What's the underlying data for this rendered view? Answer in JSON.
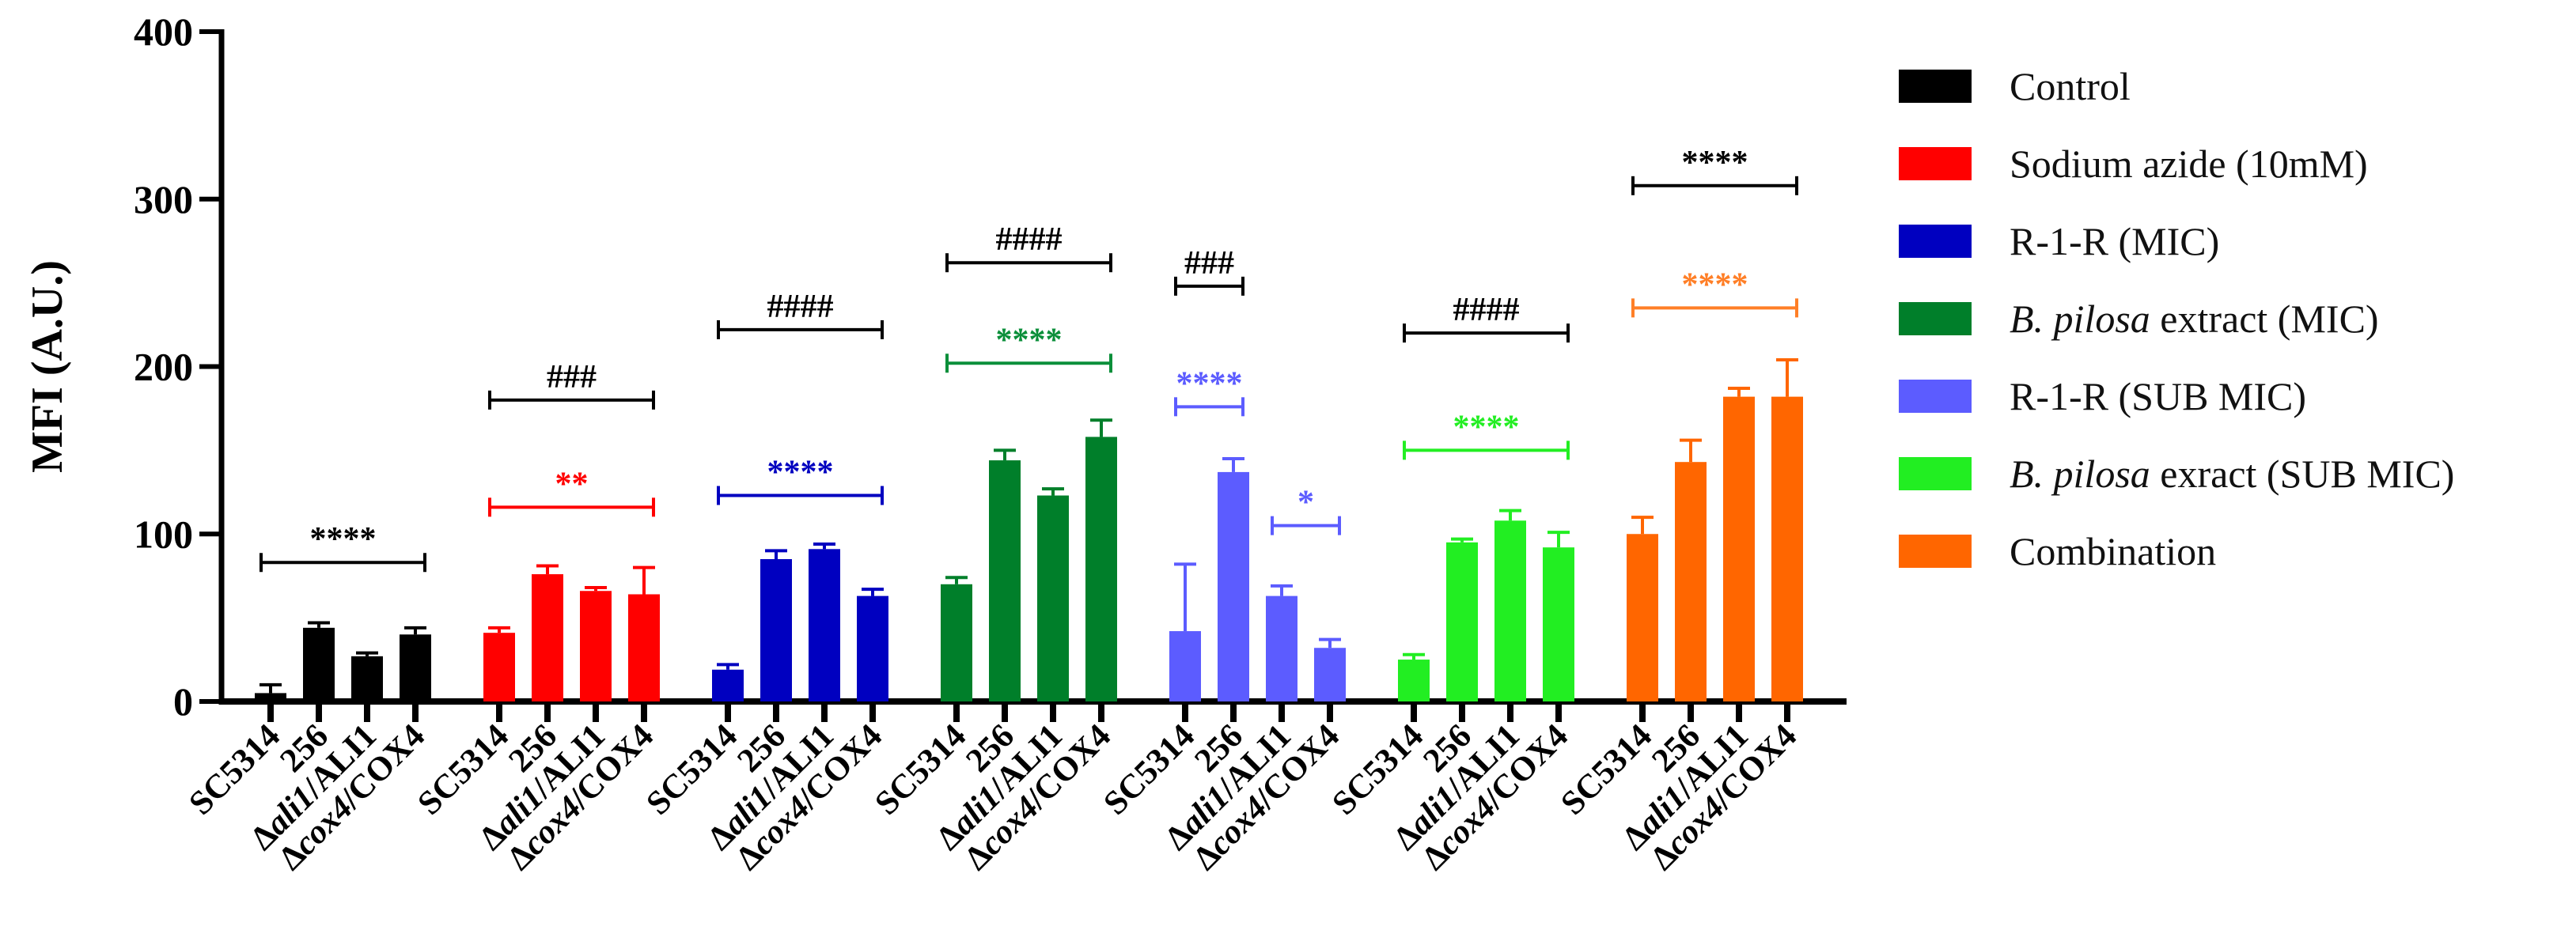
{
  "chart_data": {
    "type": "bar",
    "ylabel": "MFI (A.U.)",
    "ylim": [
      0,
      400
    ],
    "yticks": [
      0,
      100,
      200,
      300,
      400
    ],
    "strain_labels": [
      {
        "prefix": "",
        "italic": "",
        "suffix": "SC5314"
      },
      {
        "prefix": "",
        "italic": "",
        "suffix": "256"
      },
      {
        "prefix": "Δ",
        "italic": "ali1",
        "suffix": "/ALI1"
      },
      {
        "prefix": "Δ",
        "italic": "cox4",
        "suffix": "/COX4"
      }
    ],
    "series": [
      {
        "name": "Control",
        "color": "#000000",
        "values": [
          5,
          44,
          27,
          40
        ],
        "errors": [
          5,
          3,
          2,
          4
        ],
        "brackets": [
          {
            "text": "****",
            "value": 83,
            "from": 0,
            "to": 3,
            "color": "#000000"
          }
        ]
      },
      {
        "name": "Sodium azide (10mM)",
        "color": "#ff0000",
        "values": [
          41,
          76,
          66,
          64
        ],
        "errors": [
          3,
          5,
          2,
          16
        ],
        "brackets": [
          {
            "text": "**",
            "value": 116,
            "from": 0,
            "to": 3,
            "color": "#ff0000"
          },
          {
            "text": "###",
            "value": 180,
            "from": 0,
            "to": 3,
            "color": "#000000"
          }
        ]
      },
      {
        "name": "R-1-R (MIC)",
        "color": "#0000c0",
        "values": [
          19,
          85,
          91,
          63
        ],
        "errors": [
          3,
          5,
          3,
          4
        ],
        "brackets": [
          {
            "text": "****",
            "value": 123,
            "from": 0,
            "to": 3,
            "color": "#0000c0"
          },
          {
            "text": "####",
            "value": 222,
            "from": 0,
            "to": 3,
            "color": "#000000"
          }
        ]
      },
      {
        "name": "B. pilosa extract (MIC)",
        "color": "#007f2a",
        "values": [
          70,
          144,
          123,
          158
        ],
        "errors": [
          4,
          6,
          4,
          10
        ],
        "brackets": [
          {
            "text": "****",
            "value": 202,
            "from": 0,
            "to": 3,
            "color": "#0b8f3a"
          },
          {
            "text": "####",
            "value": 262,
            "from": 0,
            "to": 3,
            "color": "#000000"
          }
        ]
      },
      {
        "name": "R-1-R (SUB MIC)",
        "color": "#5c5cff",
        "values": [
          42,
          137,
          63,
          32
        ],
        "errors": [
          40,
          8,
          6,
          5
        ],
        "brackets": [
          {
            "text": "****",
            "value": 176,
            "from": 0,
            "to": 1,
            "color": "#5c5cff"
          },
          {
            "text": "*",
            "value": 105,
            "from": 2,
            "to": 3,
            "color": "#5c5cff"
          },
          {
            "text": "###",
            "value": 248,
            "from": 0,
            "to": 1,
            "color": "#000000"
          }
        ]
      },
      {
        "name": "B. pilosa exract (SUB MIC)",
        "color": "#22ee22",
        "values": [
          25,
          95,
          108,
          92
        ],
        "errors": [
          3,
          2,
          6,
          9
        ],
        "brackets": [
          {
            "text": "****",
            "value": 150,
            "from": 0,
            "to": 3,
            "color": "#22ee22"
          },
          {
            "text": "####",
            "value": 220,
            "from": 0,
            "to": 3,
            "color": "#000000"
          }
        ]
      },
      {
        "name": "Combination",
        "color": "#ff6600",
        "values": [
          100,
          143,
          182,
          182
        ],
        "errors": [
          10,
          13,
          5,
          22
        ],
        "brackets": [
          {
            "text": "****",
            "value": 235,
            "from": 0,
            "to": 3,
            "color": "#ff7f27"
          },
          {
            "text": "****",
            "value": 308,
            "from": 0,
            "to": 3,
            "color": "#000000"
          }
        ]
      }
    ],
    "legend": [
      {
        "prefix": "",
        "italic": "",
        "suffix": "Control",
        "color": "#000000"
      },
      {
        "prefix": "",
        "italic": "",
        "suffix": "Sodium azide (10mM)",
        "color": "#ff0000"
      },
      {
        "prefix": "",
        "italic": "",
        "suffix": "R-1-R (MIC)",
        "color": "#0000c0"
      },
      {
        "prefix": "",
        "italic": "B. pilosa",
        "suffix": " extract (MIC)",
        "color": "#007f2a"
      },
      {
        "prefix": "",
        "italic": "",
        "suffix": "R-1-R (SUB MIC)",
        "color": "#5c5cff"
      },
      {
        "prefix": "",
        "italic": "B. pilosa",
        "suffix": " exract (SUB MIC)",
        "color": "#22ee22"
      },
      {
        "prefix": "",
        "italic": "",
        "suffix": "Combination",
        "color": "#ff6600"
      }
    ],
    "legend_position": "right",
    "grid": false
  }
}
